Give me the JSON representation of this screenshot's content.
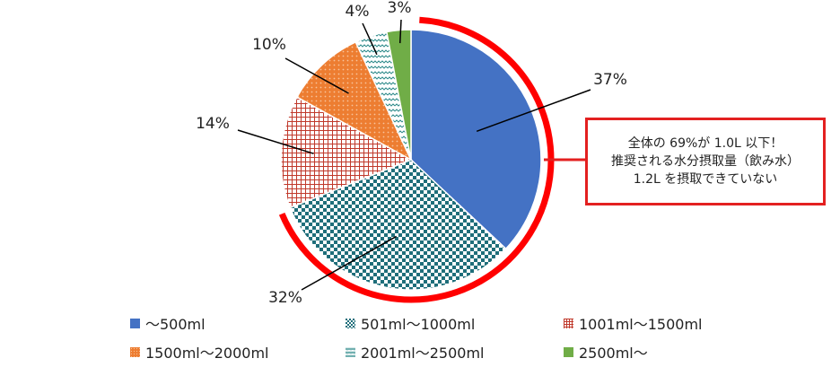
{
  "chart_data": {
    "type": "pie",
    "categories": [
      "～500ml",
      "501ml～1000ml",
      "1001ml～1500ml",
      "1500ml～2000ml",
      "2001ml～2500ml",
      "2500ml～"
    ],
    "values": [
      37,
      32,
      14,
      10,
      4,
      3
    ],
    "labels": [
      "37%",
      "32%",
      "14%",
      "10%",
      "4%",
      "3%"
    ],
    "colors": [
      "#4472c4",
      "#1f6e7a",
      "#c0392b",
      "#ed7d31",
      "#2e8b8b",
      "#70ad47"
    ],
    "patterns": [
      "solid",
      "checker",
      "grid",
      "dots",
      "zigzag",
      "solid"
    ],
    "legend_position": "bottom",
    "highlight": {
      "arc_color": "#ff0000",
      "covers": [
        "～500ml",
        "501ml～1000ml"
      ]
    }
  },
  "callout": {
    "line1": "全体の 69%が 1.0L 以下！",
    "line2": "推奨される水分摂取量（飲み水）",
    "line3": "1.2L を摂取できていない",
    "border_color": "#e32020"
  }
}
